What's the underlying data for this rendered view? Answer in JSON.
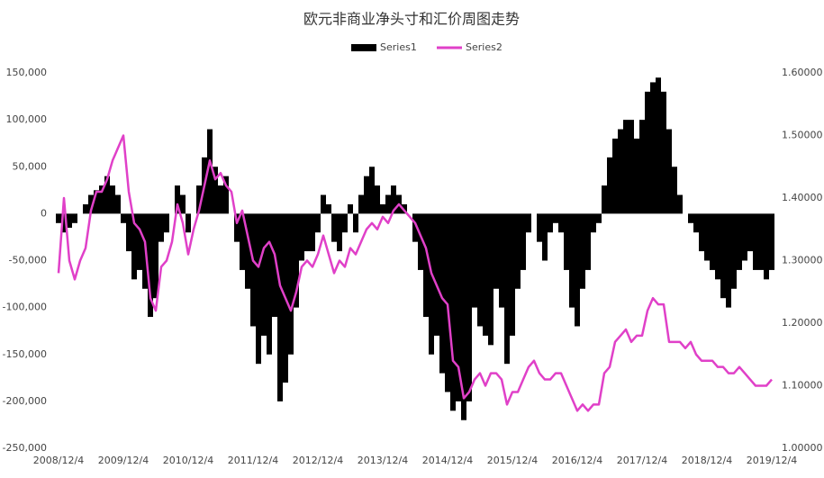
{
  "chart_data": {
    "type": "bar-line",
    "title": "欧元非商业净头寸和汇价周图走势",
    "categories": [
      "2008/12/4",
      null,
      null,
      null,
      null,
      null,
      null,
      null,
      null,
      null,
      null,
      null,
      "2009/12/4",
      null,
      null,
      null,
      null,
      null,
      null,
      null,
      null,
      null,
      null,
      null,
      "2010/12/4",
      null,
      null,
      null,
      null,
      null,
      null,
      null,
      null,
      null,
      null,
      null,
      "2011/12/4",
      null,
      null,
      null,
      null,
      null,
      null,
      null,
      null,
      null,
      null,
      null,
      "2012/12/4",
      null,
      null,
      null,
      null,
      null,
      null,
      null,
      null,
      null,
      null,
      null,
      "2013/12/4",
      null,
      null,
      null,
      null,
      null,
      null,
      null,
      null,
      null,
      null,
      null,
      "2014/12/4",
      null,
      null,
      null,
      null,
      null,
      null,
      null,
      null,
      null,
      null,
      null,
      "2015/12/4",
      null,
      null,
      null,
      null,
      null,
      null,
      null,
      null,
      null,
      null,
      null,
      "2016/12/4",
      null,
      null,
      null,
      null,
      null,
      null,
      null,
      null,
      null,
      null,
      null,
      "2017/12/4",
      null,
      null,
      null,
      null,
      null,
      null,
      null,
      null,
      null,
      null,
      null,
      "2018/12/4",
      null,
      null,
      null,
      null,
      null,
      null,
      null,
      null,
      null,
      null,
      null,
      "2019/12/4"
    ],
    "series": [
      {
        "name": "Series1",
        "color": "#000000",
        "values": [
          -10000,
          -20000,
          -15000,
          -10000,
          0,
          10000,
          20000,
          25000,
          30000,
          40000,
          30000,
          20000,
          -10000,
          -40000,
          -70000,
          -60000,
          -80000,
          -110000,
          -90000,
          -30000,
          -20000,
          0,
          30000,
          20000,
          -20000,
          0,
          30000,
          60000,
          90000,
          50000,
          30000,
          40000,
          0,
          -30000,
          -60000,
          -80000,
          -120000,
          -160000,
          -130000,
          -150000,
          -110000,
          -200000,
          -180000,
          -150000,
          -100000,
          -50000,
          -40000,
          -40000,
          -20000,
          20000,
          10000,
          -30000,
          -40000,
          -20000,
          10000,
          -20000,
          20000,
          40000,
          50000,
          30000,
          10000,
          20000,
          30000,
          20000,
          10000,
          0,
          -30000,
          -60000,
          -110000,
          -150000,
          -130000,
          -170000,
          -190000,
          -210000,
          -200000,
          -220000,
          -200000,
          -100000,
          -120000,
          -130000,
          -140000,
          -80000,
          -100000,
          -160000,
          -130000,
          -80000,
          -60000,
          -20000,
          0,
          -30000,
          -50000,
          -20000,
          -10000,
          -20000,
          -60000,
          -100000,
          -120000,
          -80000,
          -60000,
          -20000,
          -10000,
          30000,
          60000,
          80000,
          90000,
          100000,
          100000,
          80000,
          100000,
          130000,
          140000,
          145000,
          130000,
          90000,
          50000,
          20000,
          0,
          -10000,
          -20000,
          -40000,
          -50000,
          -60000,
          -70000,
          -90000,
          -100000,
          -80000,
          -60000,
          -50000,
          -40000,
          -60000,
          -60000,
          -70000,
          -60000
        ]
      },
      {
        "name": "Series2",
        "color": "#e040c8",
        "axis": "y2",
        "values": [
          1.28,
          1.4,
          1.3,
          1.27,
          1.3,
          1.32,
          1.38,
          1.41,
          1.41,
          1.43,
          1.46,
          1.48,
          1.5,
          1.41,
          1.36,
          1.35,
          1.33,
          1.24,
          1.22,
          1.29,
          1.3,
          1.33,
          1.39,
          1.36,
          1.31,
          1.35,
          1.38,
          1.42,
          1.46,
          1.43,
          1.44,
          1.42,
          1.41,
          1.36,
          1.38,
          1.34,
          1.3,
          1.29,
          1.32,
          1.33,
          1.31,
          1.26,
          1.24,
          1.22,
          1.25,
          1.29,
          1.3,
          1.29,
          1.31,
          1.34,
          1.31,
          1.28,
          1.3,
          1.29,
          1.32,
          1.31,
          1.33,
          1.35,
          1.36,
          1.35,
          1.37,
          1.36,
          1.38,
          1.39,
          1.38,
          1.37,
          1.36,
          1.34,
          1.32,
          1.28,
          1.26,
          1.24,
          1.23,
          1.14,
          1.13,
          1.08,
          1.09,
          1.11,
          1.12,
          1.1,
          1.12,
          1.12,
          1.11,
          1.07,
          1.09,
          1.09,
          1.11,
          1.13,
          1.14,
          1.12,
          1.11,
          1.11,
          1.12,
          1.12,
          1.1,
          1.08,
          1.06,
          1.07,
          1.06,
          1.07,
          1.07,
          1.12,
          1.13,
          1.17,
          1.18,
          1.19,
          1.17,
          1.18,
          1.18,
          1.22,
          1.24,
          1.23,
          1.23,
          1.17,
          1.17,
          1.17,
          1.16,
          1.17,
          1.15,
          1.14,
          1.14,
          1.14,
          1.13,
          1.13,
          1.12,
          1.12,
          1.13,
          1.12,
          1.11,
          1.1,
          1.1,
          1.1,
          1.11
        ]
      }
    ],
    "ylim": [
      -250000,
      150000
    ],
    "yticks": [
      {
        "value": -250000,
        "label": "-250,000"
      },
      {
        "value": -200000,
        "label": "-200,000"
      },
      {
        "value": -150000,
        "label": "-150,000"
      },
      {
        "value": -100000,
        "label": "-100,000"
      },
      {
        "value": -50000,
        "label": "-50,000"
      },
      0,
      {
        "value": 50000,
        "label": "50,000"
      },
      {
        "value": 100000,
        "label": "100,000"
      },
      {
        "value": 150000,
        "label": "150,000"
      }
    ],
    "y2lim": [
      1.0,
      1.6
    ],
    "y2ticks": [
      {
        "value": 1.0,
        "label": "1.00000"
      },
      {
        "value": 1.1,
        "label": "1.10000"
      },
      {
        "value": 1.2,
        "label": "1.20000"
      },
      {
        "value": 1.3,
        "label": "1.30000"
      },
      {
        "value": 1.4,
        "label": "1.40000"
      },
      {
        "value": 1.5,
        "label": "1.50000"
      },
      {
        "value": 1.6,
        "label": "1.60000"
      }
    ],
    "legend": "top"
  }
}
